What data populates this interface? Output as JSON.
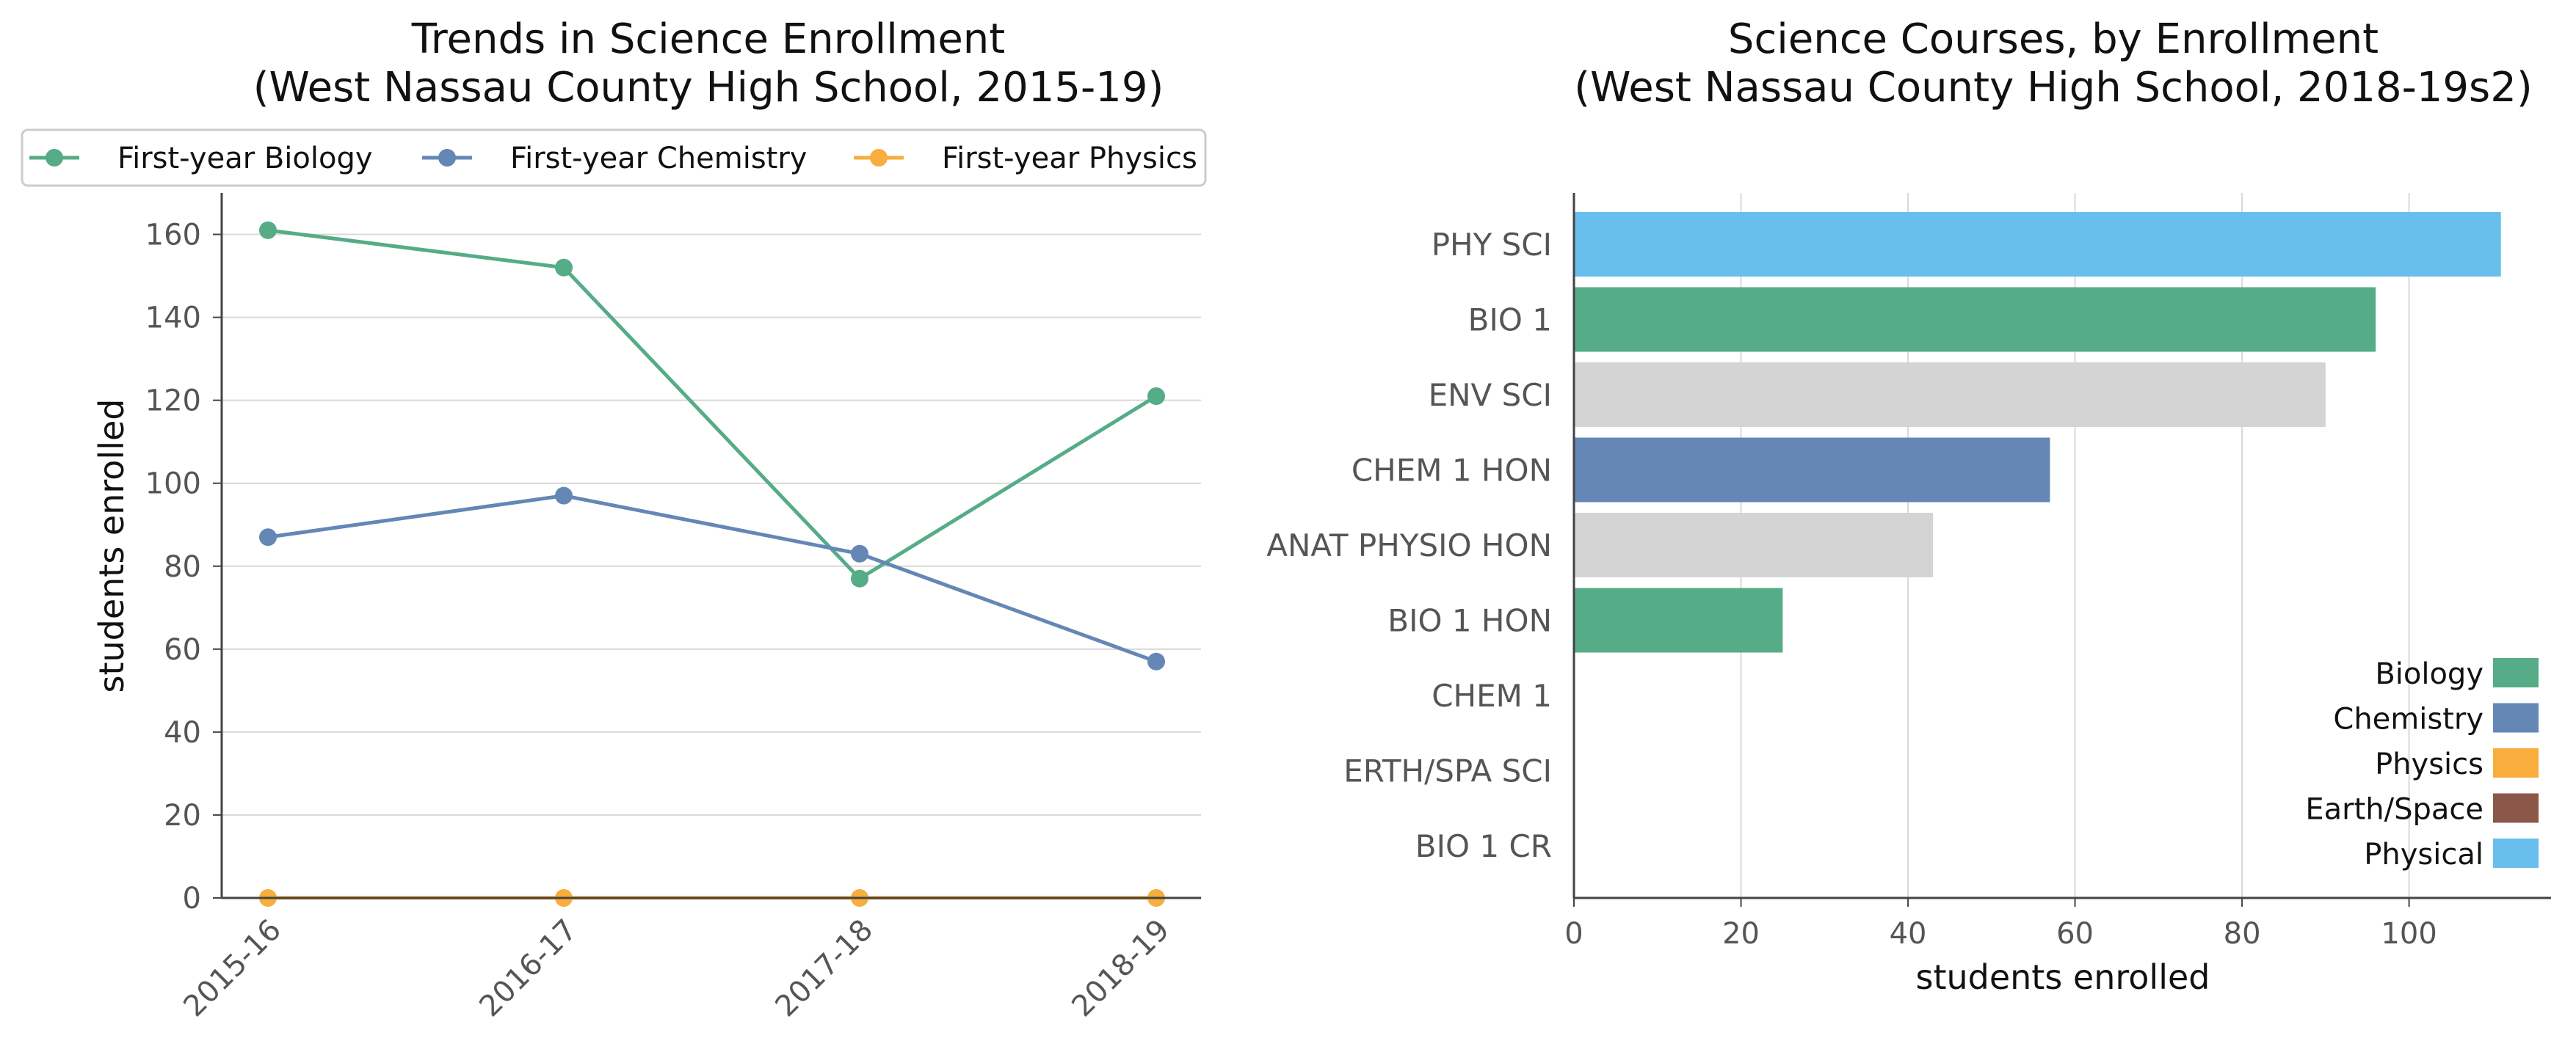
{
  "colors": {
    "biology": "#55ac87",
    "chemistry": "#6487b5",
    "physics": "#f8ad3c",
    "earth_space": "#8b5748",
    "physical": "#68bfed",
    "other": "#d4d4d4",
    "grid": "#d9d9d9",
    "axis": "#444444"
  },
  "chart_data": [
    {
      "type": "line",
      "title": "Trends in Science Enrollment",
      "subtitle": "(West Nassau County High School, 2015-19)",
      "xlabel": "",
      "ylabel": "students enrolled",
      "categories": [
        "2015-16",
        "2016-17",
        "2017-18",
        "2018-19"
      ],
      "ylim": [
        0,
        170
      ],
      "yticks": [
        0,
        20,
        40,
        60,
        80,
        100,
        120,
        140,
        160
      ],
      "grid": "horizontal",
      "legend_placement": "top",
      "series": [
        {
          "name": "First-year Biology",
          "color_key": "biology",
          "values": [
            161,
            152,
            77,
            121
          ]
        },
        {
          "name": "First-year Chemistry",
          "color_key": "chemistry",
          "values": [
            87,
            97,
            83,
            57
          ]
        },
        {
          "name": "First-year Physics",
          "color_key": "physics",
          "values": [
            0,
            0,
            0,
            0
          ]
        }
      ]
    },
    {
      "type": "bar",
      "orientation": "horizontal",
      "title": "Science Courses, by Enrollment",
      "subtitle": "(West Nassau County High School, 2018-19s2)",
      "xlabel": "students enrolled",
      "ylabel": "",
      "xlim": [
        0,
        117
      ],
      "xticks": [
        0,
        20,
        40,
        60,
        80,
        100
      ],
      "grid": "vertical",
      "legend_placement": "bottom-right",
      "categories": [
        "PHY SCI",
        "BIO 1",
        "ENV SCI",
        "CHEM 1 HON",
        "ANAT PHYSIO HON",
        "BIO 1 HON",
        "CHEM 1",
        "ERTH/SPA SCI",
        "BIO 1 CR"
      ],
      "values": [
        111,
        96,
        90,
        57,
        43,
        25,
        0,
        0,
        0
      ],
      "bar_color_keys": [
        "physical",
        "biology",
        "other",
        "chemistry",
        "other",
        "biology",
        "chemistry",
        "earth_space",
        "biology"
      ],
      "legend": [
        {
          "label": "Biology",
          "color_key": "biology"
        },
        {
          "label": "Chemistry",
          "color_key": "chemistry"
        },
        {
          "label": "Physics",
          "color_key": "physics"
        },
        {
          "label": "Earth/Space",
          "color_key": "earth_space"
        },
        {
          "label": "Physical",
          "color_key": "physical"
        }
      ]
    }
  ]
}
